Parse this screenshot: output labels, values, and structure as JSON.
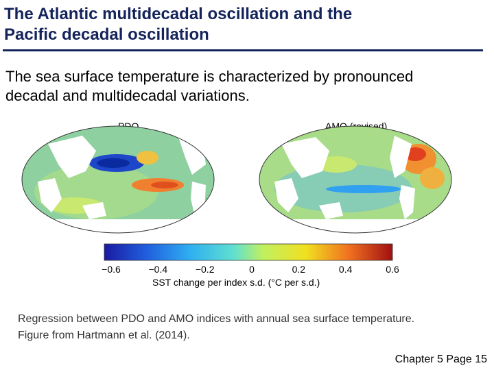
{
  "slide": {
    "title_line1": "The Atlantic multidecadal oscillation and the",
    "title_line2": "Pacific decadal oscillation",
    "intro_line1": "The sea surface temperature is characterized by pronounced",
    "intro_line2": "decadal and multidecadal variations.",
    "caption_line1": "Regression between PDO and AMO indices with annual sea surface temperature.",
    "caption_line2": "Figure from Hartmann et al. (2014).",
    "footer": "Chapter 5 Page 15"
  },
  "figure": {
    "map_left_title": "PDO",
    "map_right_title": "AMO (revised)",
    "colorbar": {
      "ticks": [
        "−0.6",
        "−0.4",
        "−0.2",
        "0",
        "0.2",
        "0.4",
        "0.6"
      ],
      "label": "SST change per index s.d. (°C per s.d.)"
    },
    "colors": {
      "ocean_base": "#7ec8a8",
      "land": "#ffffff",
      "warm": "#e8501e",
      "cool": "#1e46c8"
    }
  }
}
